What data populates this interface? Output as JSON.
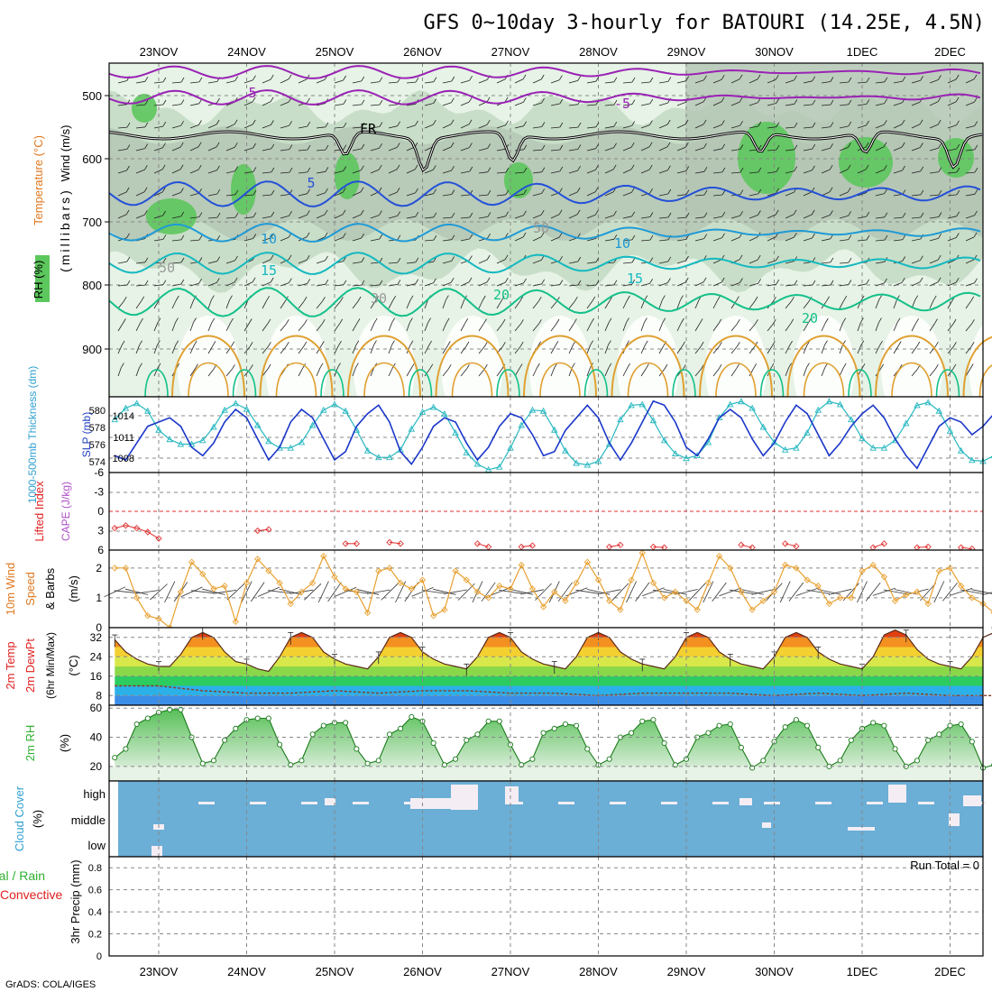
{
  "title": "GFS 0~10day 3-hourly for BATOURI (14.25E, 4.5N)",
  "credit": "GrADS: COLA/IGES",
  "dates": [
    "23NOV",
    "24NOV",
    "25NOV",
    "26NOV",
    "27NOV",
    "28NOV",
    "29NOV",
    "30NOV",
    "1DEC",
    "2DEC"
  ],
  "colors": {
    "frame": "#000000",
    "grid": "#888888",
    "rh_light": "#e6f3e6",
    "rh_mid": "#c4dcc4",
    "rh_gray": "#b4c4b4",
    "rh_green": "#5cc75c",
    "cloud_blue": "#6baed6",
    "cloud_white": "#f4eef4",
    "temp_purple": "#9a22b5",
    "temp_blue1": "#2350d8",
    "temp_blue2": "#1f9ad6",
    "temp_cyan": "#14b9c0",
    "temp_green": "#14c08a",
    "temp_orange": "#e0a030",
    "slp_line": "#1b37c9",
    "thick_line": "#28b8c0",
    "li_line": "#e03030",
    "wind_line": "#e8a030",
    "rh2m_fill": "#58c058",
    "text_orange": "#e07820",
    "text_purple": "#b050c8",
    "text_red": "#e02020",
    "text_green": "#30b030",
    "text_cyan": "#30a0d0",
    "text_blue": "#2040c0"
  },
  "panels": {
    "upper": {
      "labels": {
        "wind": "Wind (m/s)",
        "temperature": "Temperature (°C)",
        "rh": "RH (%)",
        "millibars": "(millibars)"
      },
      "yticks": [
        "500",
        "600",
        "700",
        "800",
        "900"
      ],
      "contour_labels": [
        "5",
        "-5",
        "FR",
        "5",
        "10",
        "10",
        "15",
        "15",
        "20",
        "20",
        "30",
        "50",
        "50"
      ]
    },
    "pressure": {
      "labels": {
        "thickness": "1000-500mb Thickness (dm)",
        "slp": "SLP (mb)"
      },
      "left_ticks": [
        "580",
        "578",
        "576",
        "574"
      ],
      "right_ticks": [
        "1014",
        "1011",
        "1008"
      ]
    },
    "stability": {
      "labels": {
        "li": "Lifted Index",
        "cape": "CAPE (J/kg)"
      },
      "yticks": [
        "-6",
        "-3",
        "0",
        "3",
        "6"
      ]
    },
    "wind10m": {
      "labels": {
        "main": "10m Wind",
        "speed": "Speed",
        "barbs": "& Barbs",
        "unit": "(m/s)"
      },
      "yticks": [
        "2",
        "1",
        "0"
      ]
    },
    "temp2m": {
      "labels": {
        "temp": "2m Temp",
        "dewpt": "2m DewPt",
        "minmax": "(6hr Min/Max)",
        "unit": "(°C)"
      },
      "yticks": [
        "32",
        "24",
        "16",
        "8"
      ]
    },
    "rh2m": {
      "labels": {
        "main": "2m RH",
        "unit": "(%)"
      },
      "yticks": [
        "60",
        "40",
        "20"
      ]
    },
    "cloud": {
      "labels": {
        "main": "Cloud Cover",
        "unit": "(%)"
      },
      "levels": [
        "high",
        "middle",
        "low"
      ]
    },
    "precip": {
      "labels": {
        "left1": "Total / Rain",
        "left2": "Convective",
        "main": "3hr Precip (mm)"
      },
      "yticks": [
        "0.8",
        "0.6",
        "0.4",
        "0.2",
        "0"
      ],
      "run_total": "Run Total = 0"
    }
  },
  "chart_data": [
    {
      "type": "line",
      "name": "1000-500mb Thickness (dm)",
      "x_unit": "3-hourly from 22NOV 12Z",
      "x": [
        0,
        1,
        2,
        3,
        4,
        5,
        6,
        7,
        8,
        9,
        10,
        11,
        12,
        13,
        14,
        15,
        16,
        17,
        18,
        19,
        20,
        21,
        22,
        23,
        24,
        25,
        26,
        27,
        28,
        29,
        30,
        31,
        32,
        33,
        34,
        35,
        36,
        37,
        38,
        39,
        40,
        41,
        42,
        43,
        44,
        45,
        46,
        47,
        48,
        49,
        50,
        51,
        52,
        53,
        54,
        55,
        56,
        57,
        58,
        59,
        60,
        61,
        62,
        63,
        64,
        65,
        66,
        67,
        68,
        69,
        70,
        71,
        72,
        73,
        74,
        75,
        76,
        77,
        78,
        79,
        80
      ],
      "values": [
        578.6,
        579.8,
        580.3,
        579.5,
        577.5,
        576.5,
        576.0,
        576.0,
        576.4,
        577.8,
        579.6,
        580.3,
        579.7,
        578.0,
        576.3,
        575.6,
        575.6,
        576.2,
        578.0,
        579.6,
        580.2,
        579.5,
        577.5,
        575.3,
        574.6,
        574.6,
        575.4,
        577.6,
        579.4,
        579.9,
        579.2,
        577.2,
        575.1,
        573.9,
        573.3,
        573.6,
        575.6,
        578.0,
        579.6,
        579.5,
        577.5,
        575.3,
        574.0,
        573.8,
        574.2,
        576.0,
        578.6,
        580.1,
        580.2,
        578.5,
        576.4,
        575.0,
        574.5,
        574.8,
        576.2,
        578.8,
        580.2,
        580.5,
        579.8,
        577.8,
        576.2,
        575.4,
        575.6,
        577.2,
        579.6,
        580.5,
        580.2,
        578.6,
        576.6,
        575.6,
        575.6,
        576.4,
        578.2,
        580.1,
        580.4,
        579.5,
        577.4,
        575.3,
        574.3,
        574.2,
        574.8
      ],
      "ylim": [
        573,
        581
      ]
    },
    {
      "type": "line",
      "name": "SLP (mb)",
      "x_unit": "3-hourly from 22NOV 12Z",
      "x": [
        0,
        1,
        2,
        3,
        4,
        5,
        6,
        7,
        8,
        9,
        10,
        11,
        12,
        13,
        14,
        15,
        16,
        17,
        18,
        19,
        20,
        21,
        22,
        23,
        24,
        25,
        26,
        27,
        28,
        29,
        30,
        31,
        32,
        33,
        34,
        35,
        36,
        37,
        38,
        39,
        40,
        41,
        42,
        43,
        44,
        45,
        46,
        47,
        48,
        49,
        50,
        51,
        52,
        53,
        54,
        55,
        56,
        57,
        58,
        59,
        60,
        61,
        62,
        63,
        64,
        65,
        66,
        67,
        68,
        69,
        70,
        71,
        72,
        73,
        74,
        75,
        76,
        77,
        78,
        79,
        80
      ],
      "values": [
        1008.5,
        1008.0,
        1010.0,
        1012.0,
        1012.5,
        1013.0,
        1012.0,
        1009.5,
        1008.5,
        1010.0,
        1012.5,
        1014.0,
        1013.0,
        1010.5,
        1008.0,
        1009.5,
        1012.5,
        1014.0,
        1013.0,
        1010.5,
        1008.0,
        1009.0,
        1012.0,
        1013.5,
        1014.5,
        1012.5,
        1009.0,
        1007.5,
        1009.5,
        1012.0,
        1013.0,
        1012.5,
        1010.0,
        1008.0,
        1009.5,
        1012.0,
        1013.5,
        1013.0,
        1011.0,
        1008.5,
        1009.0,
        1011.5,
        1013.0,
        1014.5,
        1013.0,
        1010.0,
        1008.0,
        1010.0,
        1012.5,
        1015.0,
        1014.5,
        1012.5,
        1009.5,
        1008.5,
        1010.5,
        1013.0,
        1014.0,
        1013.0,
        1010.5,
        1008.5,
        1010.0,
        1012.5,
        1014.5,
        1013.5,
        1011.0,
        1008.5,
        1010.0,
        1012.0,
        1013.5,
        1014.5,
        1013.0,
        1010.5,
        1008.5,
        1007.0,
        1009.5,
        1012.0,
        1013.0,
        1012.5,
        1011.0,
        1012.0,
        1013.5
      ],
      "ylim": [
        1006.5,
        1015.5
      ]
    },
    {
      "type": "line",
      "name": "Lifted Index",
      "x_unit": "3-hourly from 22NOV 12Z",
      "x": [
        0,
        1,
        2,
        3,
        4,
        13,
        14,
        21,
        22,
        25,
        26,
        33,
        34,
        37,
        38,
        45,
        46,
        49,
        50,
        57,
        58,
        61,
        62,
        69,
        70,
        73,
        74,
        77,
        78
      ],
      "values": [
        2.6,
        2.2,
        2.6,
        3.2,
        4.2,
        3.0,
        2.8,
        5.0,
        5.0,
        4.8,
        5.0,
        5.0,
        5.5,
        5.5,
        5.3,
        5.5,
        5.2,
        5.5,
        5.6,
        5.2,
        5.6,
        5.0,
        5.4,
        5.6,
        5.0,
        5.6,
        5.5,
        5.6,
        5.8
      ],
      "ylim": [
        -6,
        6
      ]
    },
    {
      "type": "line",
      "name": "10m Wind Speed (m/s)",
      "x_unit": "3-hourly from 22NOV 12Z",
      "x": [
        0,
        1,
        2,
        3,
        4,
        5,
        6,
        7,
        8,
        9,
        10,
        11,
        12,
        13,
        14,
        15,
        16,
        17,
        18,
        19,
        20,
        21,
        22,
        23,
        24,
        25,
        26,
        27,
        28,
        29,
        30,
        31,
        32,
        33,
        34,
        35,
        36,
        37,
        38,
        39,
        40,
        41,
        42,
        43,
        44,
        45,
        46,
        47,
        48,
        49,
        50,
        51,
        52,
        53,
        54,
        55,
        56,
        57,
        58,
        59,
        60,
        61,
        62,
        63,
        64,
        65,
        66,
        67,
        68,
        69,
        70,
        71,
        72,
        73,
        74,
        75,
        76,
        77,
        78,
        79,
        80
      ],
      "values": [
        2.0,
        2.0,
        1.0,
        0.4,
        0.3,
        0.0,
        1.2,
        2.2,
        1.8,
        1.3,
        1.4,
        0.2,
        1.5,
        2.3,
        1.9,
        1.5,
        0.8,
        1.2,
        1.5,
        2.4,
        1.7,
        1.3,
        1.2,
        0.5,
        1.9,
        2.0,
        1.5,
        1.3,
        1.6,
        0.4,
        0.6,
        1.9,
        1.6,
        1.2,
        1.0,
        1.4,
        1.3,
        2.1,
        1.3,
        0.7,
        1.2,
        0.9,
        1.5,
        2.2,
        1.6,
        0.9,
        0.6,
        1.6,
        2.5,
        1.5,
        1.0,
        1.2,
        0.9,
        0.6,
        1.5,
        2.4,
        2.0,
        1.2,
        0.6,
        0.9,
        1.2,
        2.1,
        2.0,
        1.6,
        1.4,
        0.8,
        1.0,
        1.0,
        1.9,
        2.1,
        1.7,
        0.9,
        1.1,
        1.2,
        0.8,
        1.9,
        2.0,
        1.4,
        1.0,
        0.8,
        0.5
      ],
      "ylim": [
        0,
        2.6
      ]
    },
    {
      "type": "area",
      "name": "2m Temp (°C)",
      "x_unit": "3-hourly from 22NOV 12Z",
      "x": [
        0,
        1,
        2,
        3,
        4,
        5,
        6,
        7,
        8,
        9,
        10,
        11,
        12,
        13,
        14,
        15,
        16,
        17,
        18,
        19,
        20,
        21,
        22,
        23,
        24,
        25,
        26,
        27,
        28,
        29,
        30,
        31,
        32,
        33,
        34,
        35,
        36,
        37,
        38,
        39,
        40,
        41,
        42,
        43,
        44,
        45,
        46,
        47,
        48,
        49,
        50,
        51,
        52,
        53,
        54,
        55,
        56,
        57,
        58,
        59,
        60,
        61,
        62,
        63,
        64,
        65,
        66,
        67,
        68,
        69,
        70,
        71,
        72,
        73,
        74,
        75,
        76,
        77,
        78,
        79,
        80
      ],
      "values": [
        31,
        26,
        23,
        21,
        20,
        20,
        25,
        32,
        34,
        32,
        26,
        22,
        21,
        19,
        18,
        24,
        32,
        34,
        32,
        26,
        23,
        21,
        20,
        19,
        24,
        32,
        34,
        32,
        26,
        23,
        21,
        20,
        19,
        24,
        32,
        34,
        32,
        26,
        23,
        21,
        20,
        19,
        24,
        32,
        34,
        32,
        26,
        23,
        21,
        20,
        19,
        24,
        32,
        34,
        32,
        26,
        23,
        21,
        20,
        19,
        24,
        32,
        34,
        32,
        26,
        23,
        21,
        20,
        19,
        24,
        33,
        35,
        33,
        27,
        23,
        21,
        20,
        19,
        24,
        32,
        34
      ],
      "ylim": [
        4,
        36
      ]
    },
    {
      "type": "line",
      "name": "2m DewPt (°C)",
      "x_unit": "3-hourly from 22NOV 12Z",
      "x": [
        0,
        4,
        8,
        12,
        16,
        20,
        24,
        28,
        32,
        36,
        40,
        44,
        48,
        52,
        56,
        60,
        64,
        68,
        72,
        76,
        80
      ],
      "values": [
        12,
        12,
        10,
        9,
        9,
        10,
        9,
        10,
        10,
        9,
        9,
        8,
        9,
        9,
        9,
        8,
        9,
        8,
        9,
        8,
        8
      ],
      "ylim": [
        4,
        36
      ]
    },
    {
      "type": "area",
      "name": "2m RH (%)",
      "x_unit": "3-hourly from 22NOV 12Z",
      "x": [
        0,
        1,
        2,
        3,
        4,
        5,
        6,
        7,
        8,
        9,
        10,
        11,
        12,
        13,
        14,
        15,
        16,
        17,
        18,
        19,
        20,
        21,
        22,
        23,
        24,
        25,
        26,
        27,
        28,
        29,
        30,
        31,
        32,
        33,
        34,
        35,
        36,
        37,
        38,
        39,
        40,
        41,
        42,
        43,
        44,
        45,
        46,
        47,
        48,
        49,
        50,
        51,
        52,
        53,
        54,
        55,
        56,
        57,
        58,
        59,
        60,
        61,
        62,
        63,
        64,
        65,
        66,
        67,
        68,
        69,
        70,
        71,
        72,
        73,
        74,
        75,
        76,
        77,
        78,
        79,
        80
      ],
      "values": [
        26,
        32,
        49,
        53,
        57,
        59,
        59,
        40,
        22,
        24,
        38,
        46,
        52,
        53,
        53,
        35,
        21,
        24,
        42,
        48,
        50,
        50,
        32,
        22,
        24,
        42,
        46,
        54,
        51,
        36,
        21,
        25,
        38,
        42,
        51,
        51,
        35,
        21,
        25,
        43,
        46,
        49,
        48,
        32,
        21,
        25,
        40,
        43,
        51,
        52,
        36,
        21,
        25,
        40,
        43,
        48,
        49,
        33,
        19,
        24,
        37,
        47,
        52,
        48,
        33,
        20,
        24,
        38,
        46,
        50,
        48,
        32,
        20,
        24,
        38,
        42,
        48,
        49,
        37,
        19,
        21
      ],
      "ylim": [
        10,
        62
      ]
    },
    {
      "type": "bar",
      "name": "3hr Precip (mm)",
      "ylim": [
        0,
        0.9
      ],
      "values": [],
      "run_total": 0
    }
  ]
}
